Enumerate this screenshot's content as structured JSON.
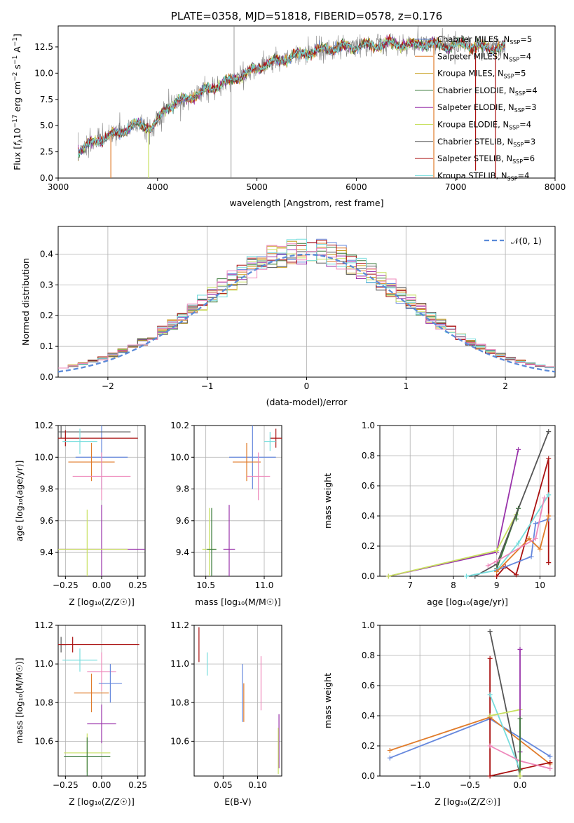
{
  "colors": {
    "c1": "#6688dd",
    "c2": "#e07b2a",
    "c3": "#c8a020",
    "c4": "#3a7a3a",
    "c5": "#9933aa",
    "c6": "#c8e060",
    "c7": "#555555",
    "c8": "#aa1111",
    "c9": "#77dddd",
    "pink": "#ee88bb",
    "gray": "#808080"
  },
  "chart_data": [
    {
      "id": "spectrum",
      "type": "line",
      "title": "PLATE=0358, MJD=51818, FIBERID=0578, z=0.176",
      "xlabel": "wavelength [Angstrom, rest frame]",
      "ylabel": "Flux [f_λ10^-17 erg cm^-2 s^-1 A^-1]",
      "xlim": [
        3000,
        8000
      ],
      "ylim": [
        0,
        14.5
      ],
      "xticks": [
        "3000",
        "4000",
        "5000",
        "6000",
        "7000",
        "8000"
      ],
      "yticks": [
        "0.0",
        "2.5",
        "5.0",
        "7.5",
        "10.0",
        "12.5"
      ],
      "legend_position": "top-right",
      "legend": [
        {
          "label": "Chabrier MILES, N",
          "sub": "SSP",
          "suffix": "=5",
          "color": "c1"
        },
        {
          "label": "Salpeter MILES, N",
          "sub": "SSP",
          "suffix": "=4",
          "color": "c2"
        },
        {
          "label": "Kroupa MILES, N",
          "sub": "SSP",
          "suffix": "=5",
          "color": "c3"
        },
        {
          "label": "Chabrier ELODIE, N",
          "sub": "SSP",
          "suffix": "=4",
          "color": "c4"
        },
        {
          "label": "Salpeter ELODIE, N",
          "sub": "SSP",
          "suffix": "=3",
          "color": "c5"
        },
        {
          "label": "Kroupa ELODIE, N",
          "sub": "SSP",
          "suffix": "=4",
          "color": "c6"
        },
        {
          "label": "Chabrier STELIB, N",
          "sub": "SSP",
          "suffix": "=3",
          "color": "c7"
        },
        {
          "label": "Salpeter STELIB, N",
          "sub": "SSP",
          "suffix": "=6",
          "color": "c8"
        },
        {
          "label": "Kroupa STELIB, N",
          "sub": "SSP",
          "suffix": "=4",
          "color": "c9"
        }
      ],
      "continuum": [
        [
          3200,
          2.6
        ],
        [
          3400,
          3.6
        ],
        [
          3600,
          4.3
        ],
        [
          3800,
          5.1
        ],
        [
          3950,
          4.8
        ],
        [
          4100,
          6.8
        ],
        [
          4300,
          7.6
        ],
        [
          4500,
          8.4
        ],
        [
          4700,
          9.2
        ],
        [
          4900,
          10.0
        ],
        [
          5100,
          10.9
        ],
        [
          5300,
          11.4
        ],
        [
          5500,
          11.9
        ],
        [
          5700,
          12.3
        ],
        [
          5900,
          12.5
        ],
        [
          6100,
          12.6
        ],
        [
          6300,
          12.8
        ],
        [
          6500,
          12.7
        ],
        [
          6700,
          12.8
        ],
        [
          6900,
          12.6
        ],
        [
          7100,
          12.7
        ],
        [
          7300,
          12.4
        ],
        [
          7500,
          12.5
        ]
      ],
      "model_spikes": [
        [
          3530,
          0
        ],
        [
          3910,
          0
        ],
        [
          6780,
          0
        ],
        [
          7400,
          0
        ],
        [
          7200,
          0.7
        ]
      ],
      "data_spikes": [
        [
          4740,
          0
        ],
        [
          4770,
          14.5
        ],
        [
          3920,
          3.2
        ]
      ]
    },
    {
      "id": "residuals",
      "type": "histogram",
      "xlabel": "(data-model)/error",
      "ylabel": "Normed distribution",
      "xlim": [
        -2.5,
        2.5
      ],
      "ylim": [
        0,
        0.49
      ],
      "xticks": [
        "−2",
        "−1",
        "0",
        "1",
        "2"
      ],
      "yticks": [
        "0.0",
        "0.1",
        "0.2",
        "0.3",
        "0.4"
      ],
      "legend": "𝒩(0, 1)",
      "legend_position": "top-right",
      "bin_width": 0.1
    },
    {
      "id": "age_vs_z",
      "type": "errorbar",
      "xlabel": "Z [log₁₀(Z/Z☉)]",
      "ylabel": "age  [log₁₀(age/yr)]",
      "xlim": [
        -0.3,
        0.3
      ],
      "ylim": [
        9.25,
        10.2
      ],
      "xticks": [
        "−0.25",
        "0.00",
        "0.25"
      ],
      "yticks": [
        "9.4",
        "9.6",
        "9.8",
        "10.0",
        "10.2"
      ],
      "points": [
        {
          "x": 0.0,
          "y": 10.0,
          "xerr": 0.18,
          "yerr": 0.2,
          "color": "c1"
        },
        {
          "x": -0.07,
          "y": 9.97,
          "xerr": 0.16,
          "yerr": 0.12,
          "color": "c2"
        },
        {
          "x": 0.0,
          "y": 9.88,
          "xerr": 0.2,
          "yerr": 0.15,
          "color": "pink"
        },
        {
          "x": -0.28,
          "y": 10.16,
          "xerr": 0.48,
          "yerr": 0.04,
          "color": "c7"
        },
        {
          "x": -0.25,
          "y": 10.12,
          "xerr": 0.5,
          "yerr": 0.05,
          "color": "c8"
        },
        {
          "x": -0.15,
          "y": 10.1,
          "xerr": 0.12,
          "yerr": 0.08,
          "color": "c9"
        },
        {
          "x": 0.0,
          "y": 9.42,
          "xerr": 0.3,
          "yerr": 0.28,
          "color": "c5"
        },
        {
          "x": -0.1,
          "y": 9.42,
          "xerr": 0.28,
          "yerr": 0.25,
          "color": "c6"
        }
      ]
    },
    {
      "id": "age_vs_mass",
      "type": "errorbar",
      "xlabel": "mass [log₁₀(M/M☉)]",
      "ylabel": "",
      "xlim": [
        10.4,
        11.15
      ],
      "ylim": [
        9.25,
        10.2
      ],
      "xticks": [
        "10.5",
        "11.0"
      ],
      "yticks": [
        "9.4",
        "9.6",
        "9.8",
        "10.0",
        "10.2"
      ],
      "points": [
        {
          "x": 10.9,
          "y": 10.0,
          "xerr": 0.2,
          "yerr": 0.2,
          "color": "c1"
        },
        {
          "x": 10.85,
          "y": 9.97,
          "xerr": 0.12,
          "yerr": 0.12,
          "color": "c2"
        },
        {
          "x": 10.95,
          "y": 9.88,
          "xerr": 0.1,
          "yerr": 0.15,
          "color": "pink"
        },
        {
          "x": 11.1,
          "y": 10.12,
          "xerr": 0.05,
          "yerr": 0.06,
          "color": "c8"
        },
        {
          "x": 11.05,
          "y": 10.1,
          "xerr": 0.05,
          "yerr": 0.06,
          "color": "c9"
        },
        {
          "x": 10.7,
          "y": 9.42,
          "xerr": 0.05,
          "yerr": 0.28,
          "color": "c5"
        },
        {
          "x": 10.53,
          "y": 9.42,
          "xerr": 0.06,
          "yerr": 0.26,
          "color": "c6"
        },
        {
          "x": 10.55,
          "y": 9.42,
          "xerr": 0.04,
          "yerr": 0.26,
          "color": "c4"
        }
      ]
    },
    {
      "id": "mass_weight_vs_age",
      "type": "line",
      "xlabel": "age  [log₁₀(age/yr)]",
      "ylabel": "mass weight",
      "xlim": [
        6.3,
        10.35
      ],
      "ylim": [
        0,
        1.0
      ],
      "xticks": [
        "7",
        "8",
        "9",
        "10"
      ],
      "yticks": [
        "0.0",
        "0.2",
        "0.4",
        "0.6",
        "0.8",
        "1.0"
      ],
      "series": [
        {
          "color": "c5",
          "points": [
            [
              6.5,
              0.0
            ],
            [
              9.0,
              0.16
            ],
            [
              9.5,
              0.84
            ]
          ]
        },
        {
          "color": "c6",
          "points": [
            [
              6.5,
              0.0
            ],
            [
              9.0,
              0.17
            ],
            [
              9.45,
              0.41
            ]
          ]
        },
        {
          "color": "c4",
          "points": [
            [
              9.0,
              0.05
            ],
            [
              9.5,
              0.45
            ],
            [
              9.45,
              0.38
            ]
          ]
        },
        {
          "color": "c7",
          "points": [
            [
              8.5,
              0.0
            ],
            [
              9.0,
              0.08
            ],
            [
              10.2,
              0.96
            ]
          ]
        },
        {
          "color": "c8",
          "points": [
            [
              9.0,
              0.0
            ],
            [
              9.2,
              0.065
            ],
            [
              9.45,
              0.01
            ],
            [
              10.2,
              0.78
            ],
            [
              10.2,
              0.09
            ]
          ]
        },
        {
          "color": "c9",
          "points": [
            [
              8.3,
              0.0
            ],
            [
              9.0,
              0.04
            ],
            [
              9.5,
              0.22
            ],
            [
              10.2,
              0.54
            ]
          ]
        },
        {
          "color": "c1",
          "points": [
            [
              9.0,
              0.04
            ],
            [
              9.8,
              0.13
            ],
            [
              9.9,
              0.35
            ],
            [
              10.2,
              0.38
            ]
          ]
        },
        {
          "color": "c2",
          "points": [
            [
              9.0,
              0.03
            ],
            [
              9.75,
              0.25
            ],
            [
              10.0,
              0.18
            ],
            [
              10.2,
              0.4
            ]
          ]
        },
        {
          "color": "pink",
          "points": [
            [
              8.8,
              0.07
            ],
            [
              9.0,
              0.1
            ],
            [
              9.9,
              0.25
            ],
            [
              10.1,
              0.52
            ]
          ]
        }
      ]
    },
    {
      "id": "mass_vs_z",
      "type": "errorbar",
      "xlabel": "Z [log₁₀(Z/Z☉)]",
      "ylabel": "mass [log₁₀(M/M☉)]",
      "xlim": [
        -0.3,
        0.3
      ],
      "ylim": [
        10.42,
        11.2
      ],
      "xticks": [
        "−0.25",
        "0.00",
        "0.25"
      ],
      "yticks": [
        "10.6",
        "10.8",
        "11.0",
        "11.2"
      ],
      "points": [
        {
          "x": -0.28,
          "y": 11.1,
          "xerr": 0.04,
          "yerr": 0.04,
          "color": "c7"
        },
        {
          "x": -0.2,
          "y": 11.1,
          "xerr": 0.46,
          "yerr": 0.04,
          "color": "c8"
        },
        {
          "x": -0.15,
          "y": 11.02,
          "xerr": 0.12,
          "yerr": 0.06,
          "color": "c9"
        },
        {
          "x": 0.0,
          "y": 10.96,
          "xerr": 0.1,
          "yerr": 0.1,
          "color": "pink"
        },
        {
          "x": 0.06,
          "y": 10.9,
          "xerr": 0.08,
          "yerr": 0.1,
          "color": "c1"
        },
        {
          "x": -0.07,
          "y": 10.85,
          "xerr": 0.12,
          "yerr": 0.1,
          "color": "c2"
        },
        {
          "x": 0.0,
          "y": 10.69,
          "xerr": 0.1,
          "yerr": 0.1,
          "color": "c5"
        },
        {
          "x": -0.1,
          "y": 10.54,
          "xerr": 0.16,
          "yerr": 0.1,
          "color": "c6"
        },
        {
          "x": -0.1,
          "y": 10.52,
          "xerr": 0.16,
          "yerr": 0.1,
          "color": "c4"
        }
      ]
    },
    {
      "id": "mass_vs_ebv",
      "type": "errorbar",
      "xlabel": "E(B-V)",
      "ylabel": "",
      "xlim": [
        0.008,
        0.135
      ],
      "ylim": [
        10.42,
        11.2
      ],
      "xticks": [
        "0.05",
        "0.10"
      ],
      "yticks": [
        "10.6",
        "10.8",
        "11.0",
        "11.2"
      ],
      "points": [
        {
          "x": 0.015,
          "y": 11.1,
          "xerr": 0.0,
          "yerr": 0.09,
          "color": "c8"
        },
        {
          "x": 0.027,
          "y": 11.0,
          "xerr": 0.0,
          "yerr": 0.06,
          "color": "c9"
        },
        {
          "x": 0.078,
          "y": 10.85,
          "xerr": 0.0,
          "yerr": 0.15,
          "color": "c1"
        },
        {
          "x": 0.08,
          "y": 10.8,
          "xerr": 0.0,
          "yerr": 0.1,
          "color": "c2"
        },
        {
          "x": 0.105,
          "y": 10.9,
          "xerr": 0.0,
          "yerr": 0.14,
          "color": "pink"
        },
        {
          "x": 0.131,
          "y": 10.6,
          "xerr": 0.0,
          "yerr": 0.14,
          "color": "c5"
        },
        {
          "x": 0.13,
          "y": 10.55,
          "xerr": 0.0,
          "yerr": 0.12,
          "color": "c6"
        }
      ]
    },
    {
      "id": "mass_weight_vs_z",
      "type": "line",
      "xlabel": "Z [log₁₀(Z/Z☉)]",
      "ylabel": "mass weight",
      "xlim": [
        -1.4,
        0.35
      ],
      "ylim": [
        0,
        1.0
      ],
      "xticks": [
        "−1.0",
        "−0.5",
        "0.0"
      ],
      "yticks": [
        "0.0",
        "0.2",
        "0.4",
        "0.6",
        "0.8",
        "1.0"
      ],
      "series": [
        {
          "color": "c1",
          "points": [
            [
              -1.3,
              0.12
            ],
            [
              -0.3,
              0.38
            ],
            [
              0.3,
              0.13
            ]
          ]
        },
        {
          "color": "c2",
          "points": [
            [
              -1.3,
              0.17
            ],
            [
              -0.3,
              0.39
            ],
            [
              0.3,
              0.08
            ]
          ]
        },
        {
          "color": "c7",
          "points": [
            [
              -0.3,
              0.96
            ],
            [
              0.0,
              0.0
            ]
          ]
        },
        {
          "color": "c8",
          "points": [
            [
              -0.3,
              0.78
            ],
            [
              -0.3,
              0.0
            ],
            [
              0.3,
              0.09
            ]
          ]
        },
        {
          "color": "c9",
          "points": [
            [
              -0.3,
              0.54
            ],
            [
              0.0,
              0.04
            ]
          ]
        },
        {
          "color": "c6",
          "points": [
            [
              -0.3,
              0.4
            ],
            [
              0.0,
              0.44
            ],
            [
              0.0,
              0.0
            ]
          ]
        },
        {
          "color": "c5",
          "points": [
            [
              0.0,
              0.84
            ],
            [
              0.0,
              0.16
            ]
          ]
        },
        {
          "color": "pink",
          "points": [
            [
              -0.3,
              0.2
            ],
            [
              0.0,
              0.1
            ],
            [
              0.3,
              0.05
            ]
          ]
        },
        {
          "color": "c4",
          "points": [
            [
              0.0,
              0.38
            ],
            [
              0.0,
              0.04
            ]
          ]
        }
      ]
    }
  ]
}
